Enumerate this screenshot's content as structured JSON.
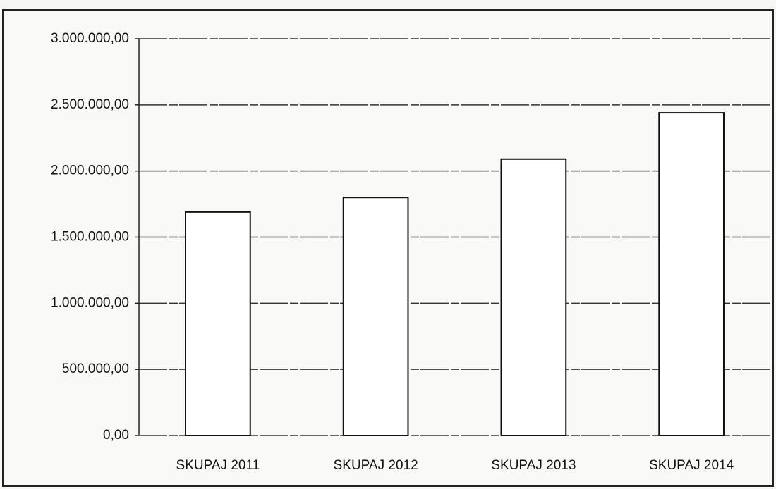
{
  "chart_data": {
    "type": "bar",
    "categories": [
      "SKUPAJ 2011",
      "SKUPAJ 2012",
      "SKUPAJ 2013",
      "SKUPAJ 2014"
    ],
    "values": [
      1690000,
      1800000,
      2090000,
      2440000
    ],
    "color": "#ffffff",
    "ylim": [
      0,
      3000000
    ],
    "yticks": [
      {
        "value": 0,
        "label": "0,00"
      },
      {
        "value": 500000,
        "label": "500.000,00"
      },
      {
        "value": 1000000,
        "label": "1.000.000,00"
      },
      {
        "value": 1500000,
        "label": "1.500.000,00"
      },
      {
        "value": 2000000,
        "label": "2.000.000,00"
      },
      {
        "value": 2500000,
        "label": "2.500.000,00"
      },
      {
        "value": 3000000,
        "label": "3.000.000,00"
      }
    ],
    "grid": true
  }
}
